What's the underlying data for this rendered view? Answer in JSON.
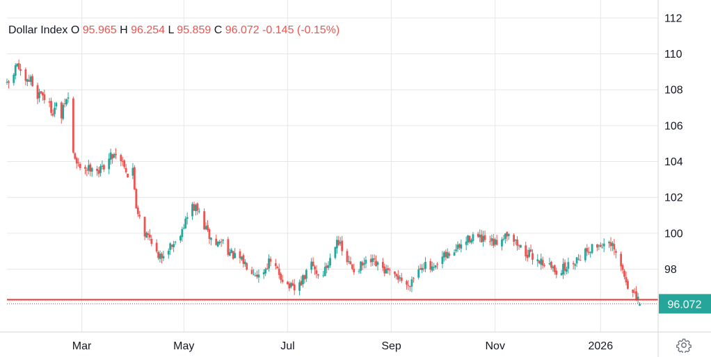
{
  "legend": {
    "name": "Dollar Index",
    "o_label": "O",
    "o_value": "95.965",
    "h_label": "H",
    "h_value": "96.254",
    "l_label": "L",
    "l_value": "95.859",
    "c_label": "C",
    "c_value": "96.072",
    "change": "-0.145 (-0.15%)"
  },
  "price_tag": "96.072",
  "settings_icon": "gear-icon",
  "colors": {
    "up": "#26a69a",
    "down": "#ef5350",
    "price_tag_bg": "#26a69a",
    "reference_line": "#e53935",
    "grid": "#e6e6e6",
    "axis_text": "#131722"
  },
  "chart_data": {
    "type": "candlestick",
    "title": "Dollar Index",
    "ylim": [
      94.5,
      113
    ],
    "y_ticks": [
      98,
      100,
      102,
      104,
      106,
      108,
      110,
      112
    ],
    "x_ticks": [
      "Mar",
      "May",
      "Jul",
      "Sep",
      "Nov",
      "2026"
    ],
    "x_tick_days": [
      45,
      105,
      166,
      227,
      288,
      350
    ],
    "x_range_days": [
      1,
      381
    ],
    "grid": true,
    "reference_line": 96.3,
    "last_price": 96.072,
    "path_days": [
      1,
      4,
      7,
      9,
      12,
      15,
      18,
      21,
      25,
      28,
      30,
      33,
      35,
      38,
      40,
      42,
      45,
      49,
      52,
      55,
      58,
      60,
      62,
      65,
      68,
      70,
      72,
      75,
      77,
      79,
      82,
      87,
      90,
      95,
      100,
      105,
      110,
      113,
      116,
      120,
      124,
      128,
      132,
      136,
      140,
      145,
      150,
      155,
      160,
      165,
      170,
      175,
      180,
      185,
      190,
      195,
      199,
      201,
      205,
      210,
      215,
      220,
      225,
      229,
      232,
      235,
      240,
      245,
      252,
      257,
      262,
      268,
      275,
      280,
      288,
      293,
      296,
      300,
      306,
      312,
      318,
      324,
      330,
      336,
      341,
      347,
      352,
      357,
      361,
      364,
      367,
      369,
      371,
      374,
      375
    ],
    "path_closes": [
      108.2,
      108.6,
      109.5,
      108.8,
      108.3,
      108.6,
      107.6,
      107.9,
      107.2,
      106.8,
      107.1,
      106.5,
      107.3,
      107.6,
      104.5,
      103.8,
      103.7,
      103.6,
      103.9,
      103.4,
      103.8,
      104.0,
      104.3,
      104.5,
      104.1,
      103.9,
      103.2,
      103.5,
      101.5,
      101.0,
      100.0,
      99.6,
      98.5,
      99.2,
      99.5,
      100.5,
      101.5,
      101.3,
      100.6,
      99.8,
      99.4,
      99.6,
      98.9,
      98.6,
      98.4,
      98.0,
      97.6,
      98.4,
      97.9,
      97.2,
      96.8,
      97.4,
      98.3,
      97.5,
      98.3,
      99.8,
      98.7,
      98.4,
      98.0,
      98.2,
      98.4,
      98.1,
      97.8,
      97.5,
      97.6,
      96.9,
      97.6,
      98.3,
      97.9,
      98.6,
      98.9,
      99.3,
      99.9,
      99.6,
      99.4,
      99.9,
      100.1,
      99.5,
      98.9,
      98.6,
      98.3,
      97.9,
      98.1,
      98.6,
      99.0,
      99.3,
      99.4,
      99.2,
      98.4,
      97.6,
      96.9,
      96.6,
      96.3,
      96.1,
      96.1
    ]
  }
}
